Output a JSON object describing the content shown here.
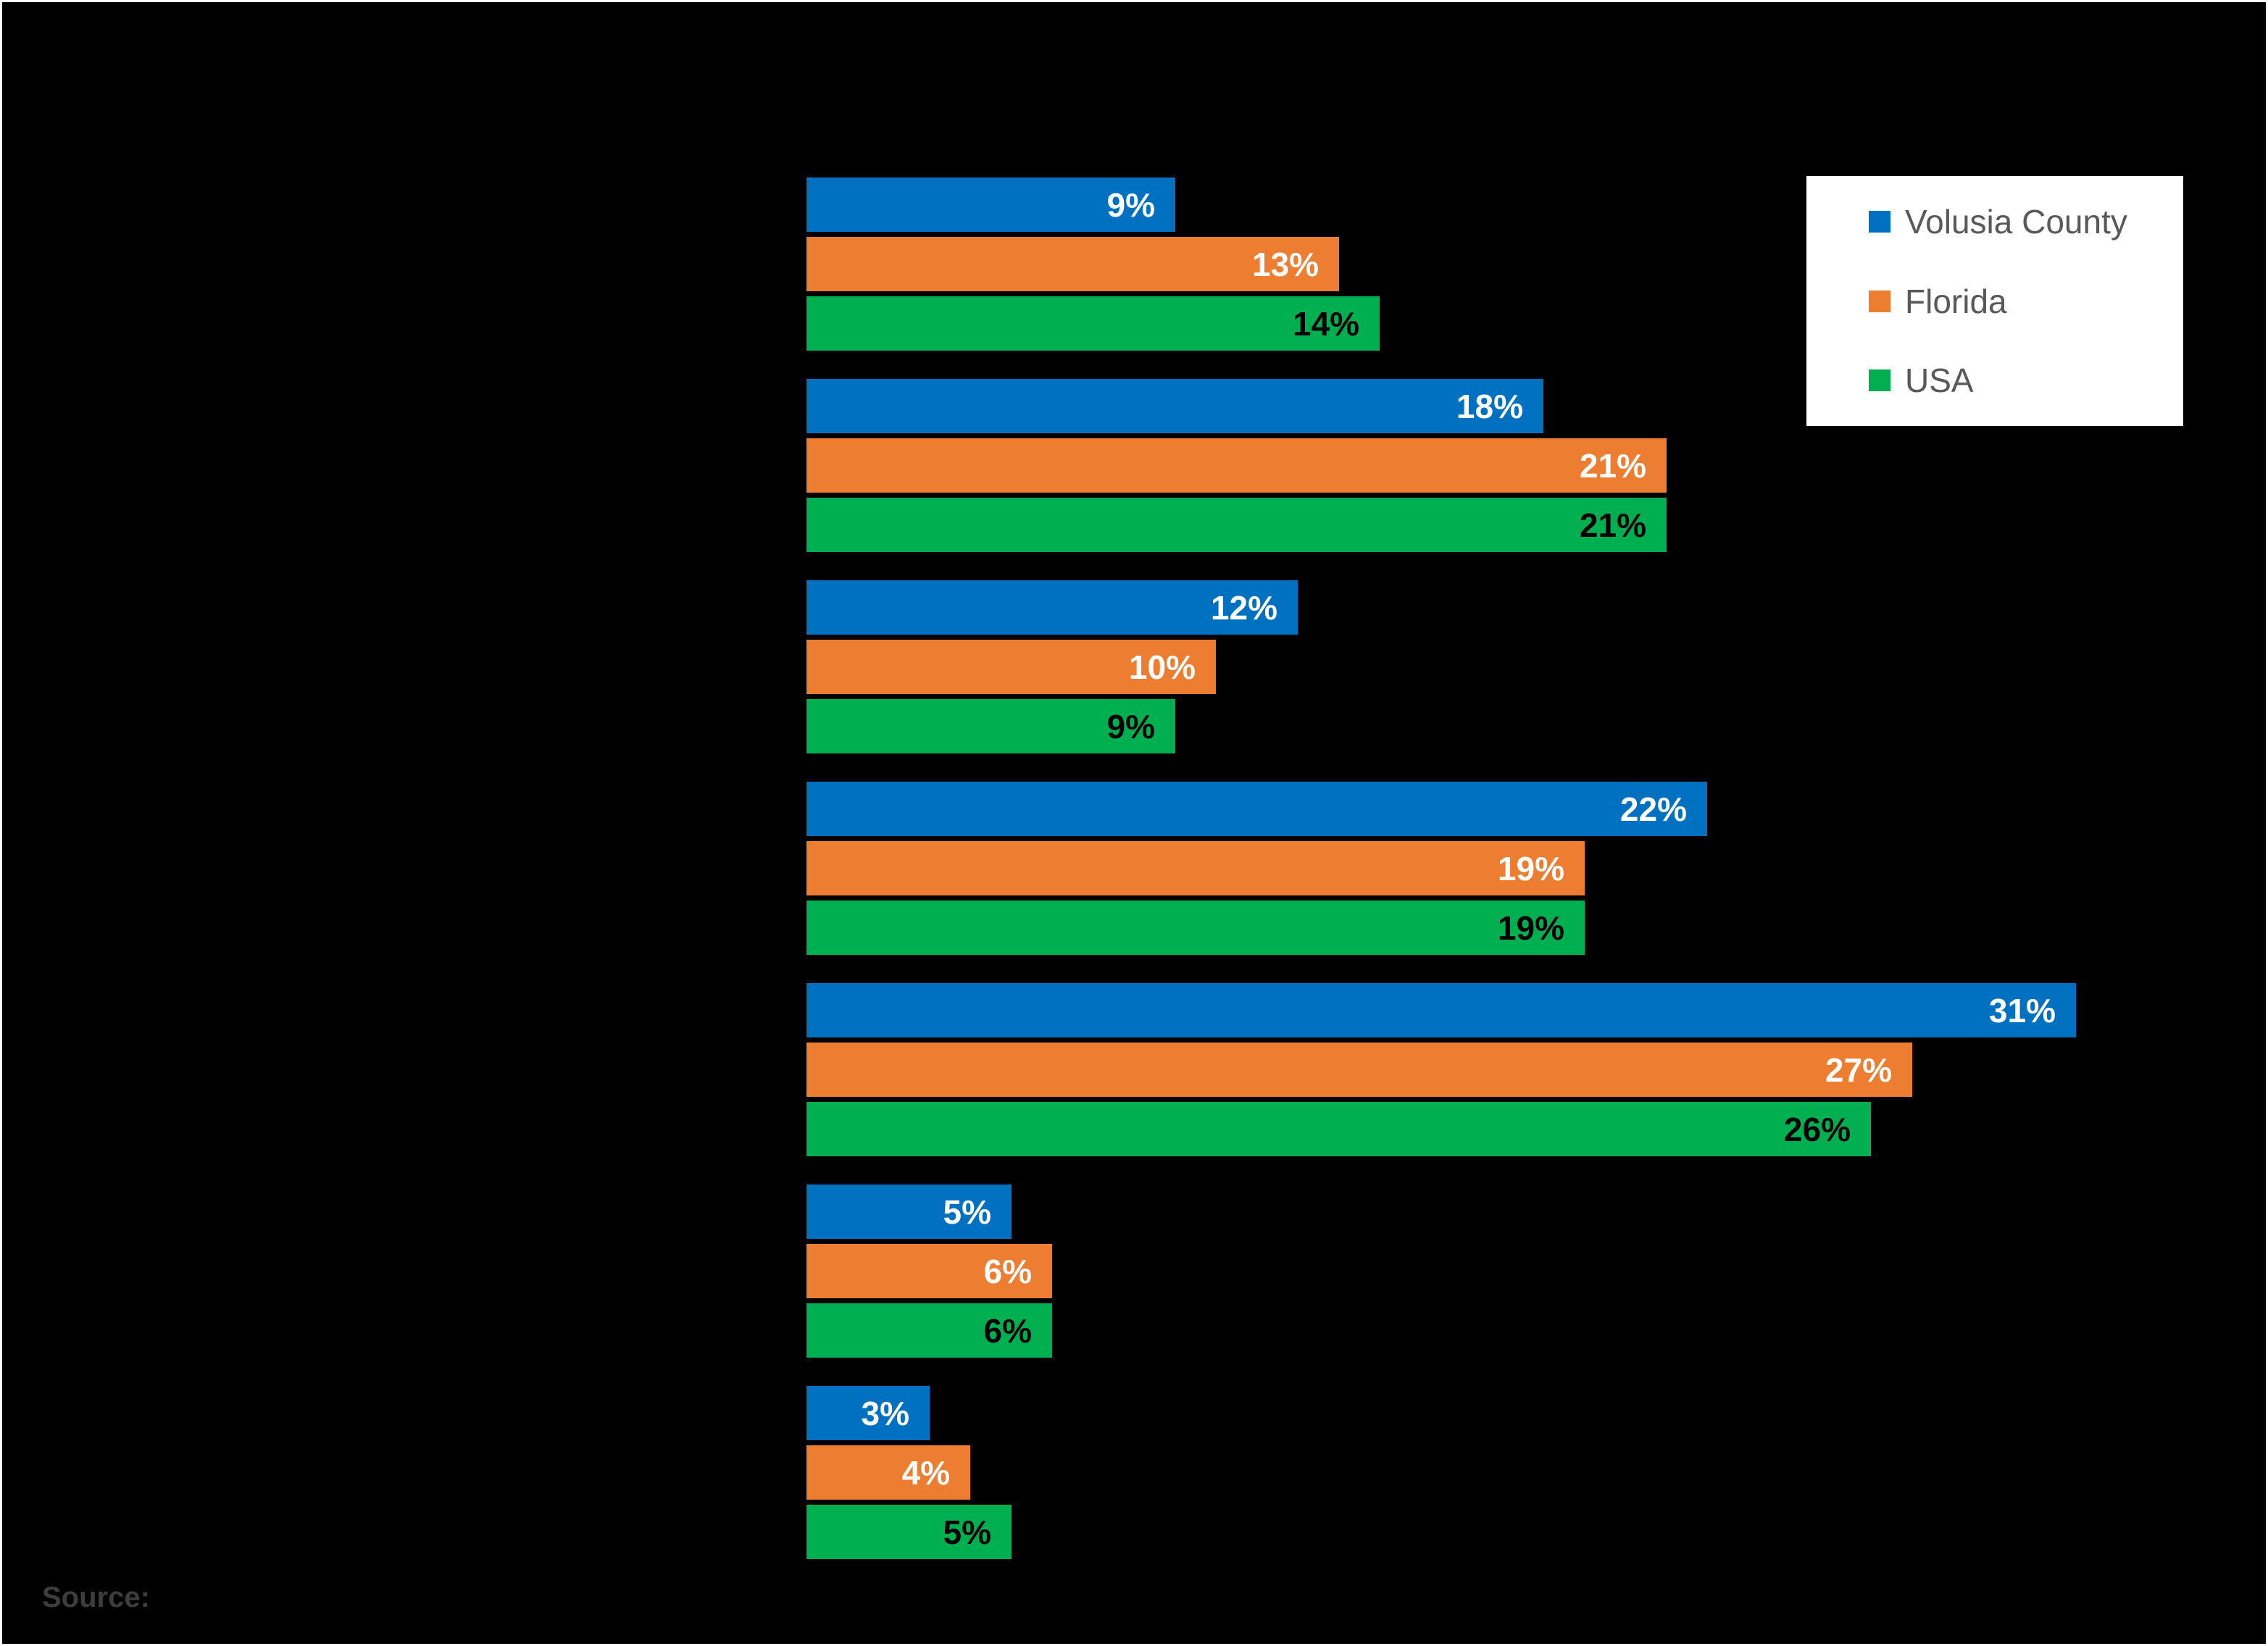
{
  "window": {
    "background": "#000000"
  },
  "source": {
    "label": "Source:"
  },
  "legend": {
    "position": "top-right",
    "background": "#FFFFFF",
    "text_color": "#595959"
  },
  "chart_data": {
    "type": "bar",
    "orientation": "horizontal",
    "title": "",
    "categories": [
      "",
      "",
      "",
      "",
      "",
      "",
      ""
    ],
    "category_labels_visible": false,
    "series": [
      {
        "name": "Volusia County",
        "color": "#0070C0",
        "label_color": "#FFFFFF",
        "values": [
          9,
          18,
          12,
          22,
          31,
          5,
          3
        ]
      },
      {
        "name": "Florida",
        "color": "#ED7D31",
        "label_color": "#FFFFFF",
        "values": [
          13,
          21,
          10,
          19,
          27,
          6,
          4
        ]
      },
      {
        "name": "USA",
        "color": "#00B050",
        "label_color": "#000000",
        "values": [
          14,
          21,
          9,
          19,
          26,
          6,
          5
        ]
      }
    ],
    "value_suffix": "%",
    "data_labels": "inside-end",
    "xlim": [
      0,
      35
    ],
    "grid": false,
    "axes_visible": false,
    "legend_position": "top-right"
  }
}
